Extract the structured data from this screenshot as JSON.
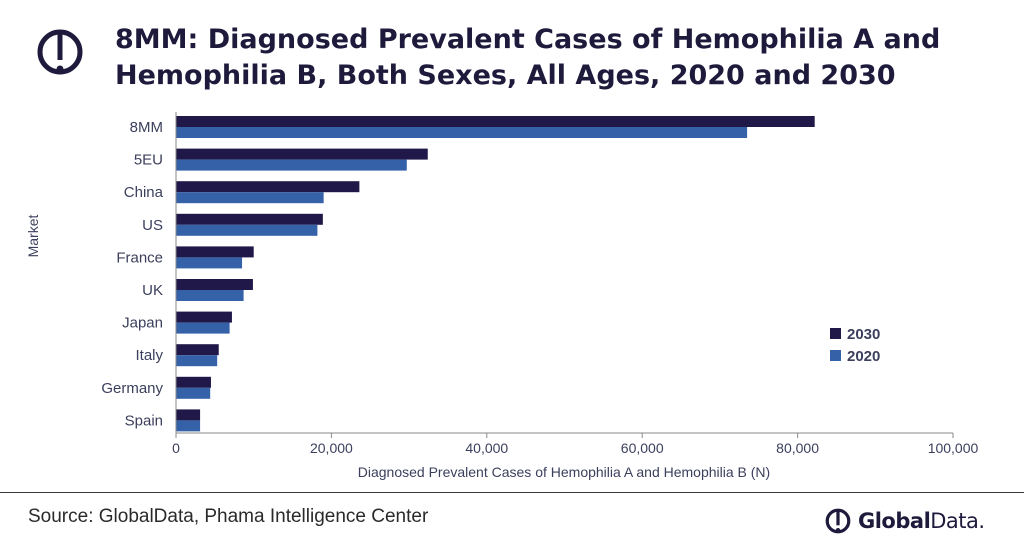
{
  "header": {
    "title_line1": "8MM: Diagnosed Prevalent Cases of Hemophilia A and",
    "title_line2": "Hemophilia B, Both Sexes, All Ages, 2020 and 2030"
  },
  "footer": {
    "source": "Source: GlobalData, Phama Intelligence Center",
    "brand_bold": "Global",
    "brand_rest": "Data."
  },
  "colors": {
    "series_2030": "#201848",
    "series_2020": "#3461a8",
    "axis": "#8a8a8a",
    "text": "#3b3f5c"
  },
  "chart_data": {
    "type": "bar",
    "orientation": "horizontal",
    "categories": [
      "8MM",
      "5EU",
      "China",
      "US",
      "France",
      "UK",
      "Japan",
      "Italy",
      "Germany",
      "Spain"
    ],
    "series": [
      {
        "name": "2030",
        "values": [
          82200,
          32400,
          23600,
          18900,
          10000,
          9900,
          7200,
          5500,
          4500,
          3100
        ]
      },
      {
        "name": "2020",
        "values": [
          73500,
          29700,
          19000,
          18200,
          8500,
          8700,
          6900,
          5300,
          4400,
          3100
        ]
      }
    ],
    "xlabel": "Diagnosed Prevalent Cases of Hemophilia A and Hemophilia B (N)",
    "ylabel": "Market",
    "xlim": [
      0,
      100000
    ],
    "xticks": [
      0,
      20000,
      40000,
      60000,
      80000,
      100000
    ],
    "xtick_labels": [
      "0",
      "20,000",
      "40,000",
      "60,000",
      "80,000",
      "100,000"
    ],
    "grid": false,
    "legend_position": "right"
  }
}
